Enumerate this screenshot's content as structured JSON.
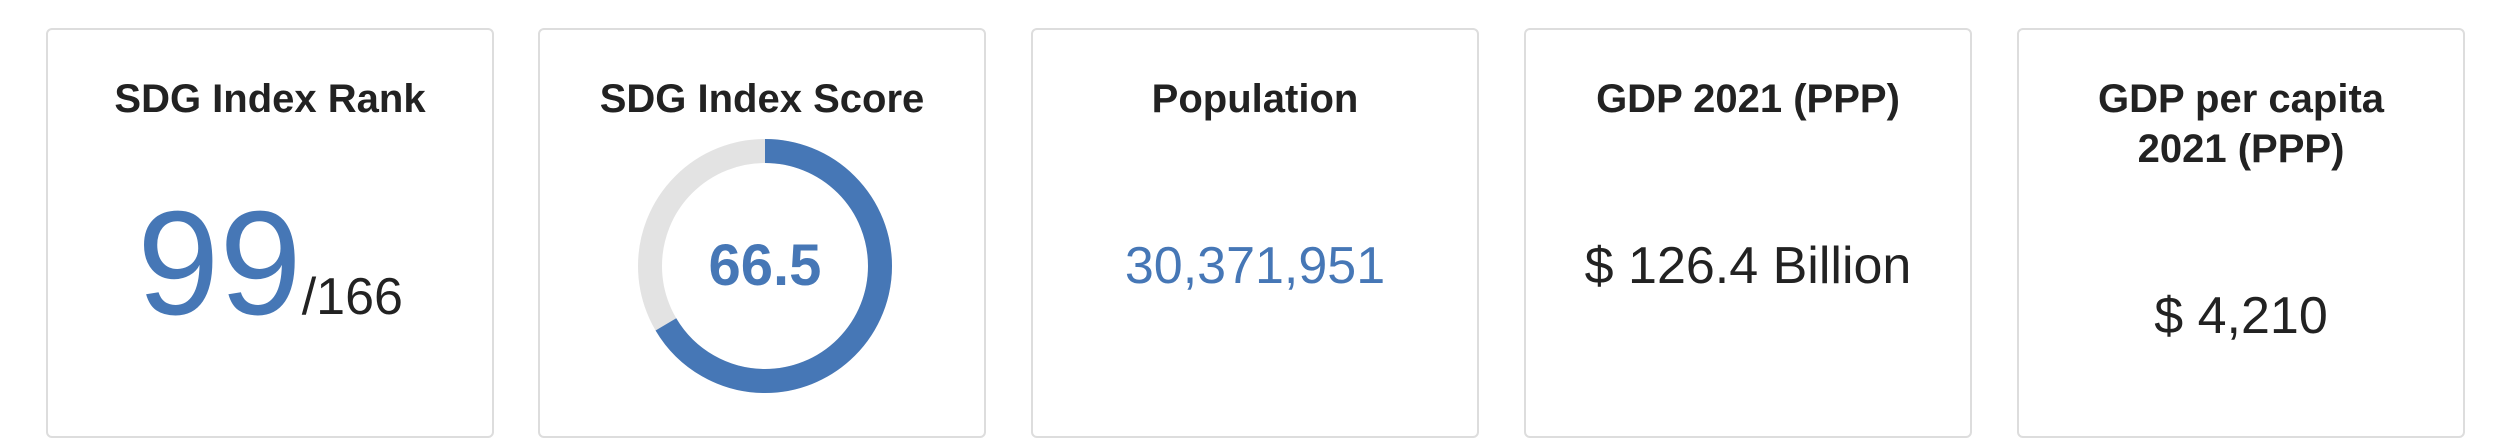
{
  "cards": {
    "rank": {
      "title": "SDG Index Rank",
      "value": "99",
      "total": "/166"
    },
    "score": {
      "title": "SDG Index Score",
      "value": "66.5",
      "fraction": 0.665,
      "colors": {
        "fill": "#4677b6",
        "track": "#e3e3e3"
      }
    },
    "population": {
      "title": "Population",
      "value": "30,371,951"
    },
    "gdp": {
      "title": "GDP 2021 (PPP)",
      "value": "$ 126.4 Billion"
    },
    "gdp_per_capita": {
      "title_line1": "GDP per capita",
      "title_line2": "2021 (PPP)",
      "value": "$ 4,210"
    }
  },
  "colors": {
    "accent": "#4677b6",
    "border": "#dddddd",
    "text": "#222222"
  }
}
